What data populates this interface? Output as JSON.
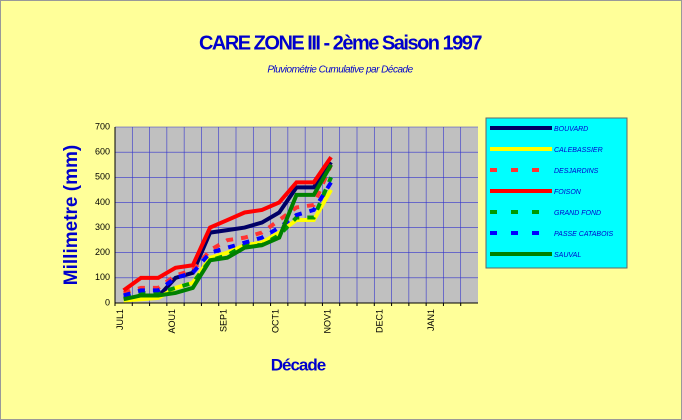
{
  "chart_data": {
    "type": "line",
    "title": "CARE ZONE III - 2ème Saison 1997",
    "subtitle": "Pluviométrie Cumulative par Décade",
    "y_label": "Millimetre (mm)",
    "x_label": "Décade",
    "categories": [
      "JUL1",
      null,
      null,
      "AOU1",
      null,
      null,
      "SEP1",
      null,
      null,
      "OCT1",
      null,
      null,
      "NOV1",
      null,
      null,
      "DEC1",
      null,
      null,
      "JAN1",
      null,
      null
    ],
    "series": [
      {
        "name": "BOUVARD",
        "color": "#000066",
        "style": "solid",
        "values": [
          20,
          20,
          25,
          100,
          120,
          280,
          290,
          300,
          320,
          360,
          460,
          460,
          560,
          null,
          null,
          null,
          null,
          null,
          null,
          null,
          null
        ]
      },
      {
        "name": "CALEBASSIER",
        "color": "#ffff00",
        "style": "solid",
        "values": [
          10,
          15,
          20,
          60,
          80,
          180,
          200,
          230,
          240,
          280,
          330,
          330,
          450,
          null,
          null,
          null,
          null,
          null,
          null,
          null,
          null
        ]
      },
      {
        "name": "DESJARDINS",
        "color": "#ff3333",
        "style": "dashed",
        "values": [
          40,
          60,
          60,
          110,
          130,
          210,
          250,
          260,
          280,
          330,
          380,
          390,
          550,
          null,
          null,
          null,
          null,
          null,
          null,
          null,
          null
        ]
      },
      {
        "name": "FOISON",
        "color": "#ff0000",
        "style": "solid",
        "values": [
          50,
          100,
          100,
          140,
          150,
          300,
          330,
          360,
          370,
          400,
          480,
          480,
          580,
          null,
          null,
          null,
          null,
          null,
          null,
          null,
          null
        ]
      },
      {
        "name": "GRAND FOND",
        "color": "#009900",
        "style": "dashed",
        "values": [
          30,
          40,
          40,
          60,
          80,
          170,
          190,
          230,
          230,
          270,
          340,
          340,
          500,
          null,
          null,
          null,
          null,
          null,
          null,
          null,
          null
        ]
      },
      {
        "name": "PASSE CATABOIS",
        "color": "#0000ff",
        "style": "dashed",
        "values": [
          30,
          50,
          50,
          100,
          120,
          200,
          220,
          240,
          260,
          300,
          350,
          370,
          480,
          null,
          null,
          null,
          null,
          null,
          null,
          null,
          null
        ]
      },
      {
        "name": "SAUVAL",
        "color": "#008000",
        "style": "solid",
        "values": [
          15,
          30,
          30,
          40,
          60,
          170,
          180,
          220,
          230,
          260,
          430,
          430,
          550,
          null,
          null,
          null,
          null,
          null,
          null,
          null,
          null
        ]
      }
    ],
    "ylim": [
      0,
      700
    ],
    "yticks": [
      0,
      100,
      200,
      300,
      400,
      500,
      600,
      700
    ],
    "grid": true
  }
}
